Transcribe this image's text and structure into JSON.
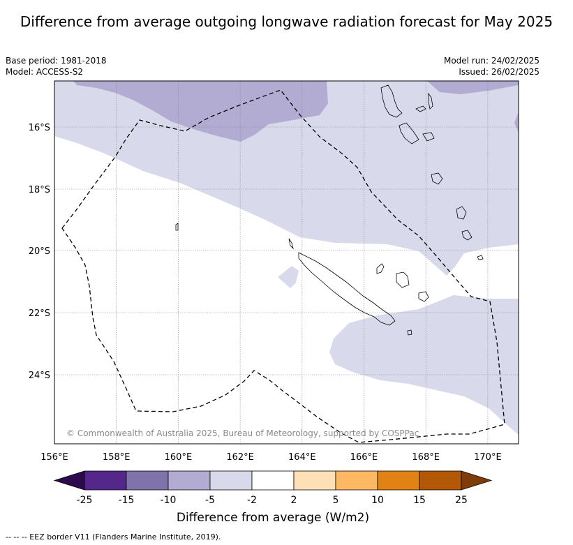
{
  "title": "Difference from average outgoing longwave radiation forecast for May 2025",
  "base_period": "Base period: 1981-2018",
  "model": "Model: ACCESS-S2",
  "model_run": "Model run: 24/02/2025",
  "issued": "Issued: 26/02/2025",
  "credit": "© Commonwealth of Australia 2025, Bureau of Meteorology, supported by COSPPac",
  "footer": "--  --  -- EEZ border V11 (Flanders Marine Institute, 2019).",
  "map": {
    "lon_ticks": [
      "156°E",
      "158°E",
      "160°E",
      "162°E",
      "164°E",
      "166°E",
      "168°E",
      "170°E"
    ],
    "lat_ticks": [
      "16°S",
      "18°S",
      "20°S",
      "22°S",
      "24°S"
    ]
  },
  "colorbar": {
    "title": "Difference from average (W/m2)",
    "labels": [
      "-25",
      "-15",
      "-10",
      "-5",
      "-2",
      "2",
      "5",
      "10",
      "15",
      "25"
    ],
    "colors": [
      "#2d0a4d",
      "#54288a",
      "#8073ac",
      "#b2abd2",
      "#d8daeb",
      "#ffffff",
      "#fee0b6",
      "#fdb863",
      "#e08214",
      "#b35806",
      "#7f3b08"
    ]
  }
}
